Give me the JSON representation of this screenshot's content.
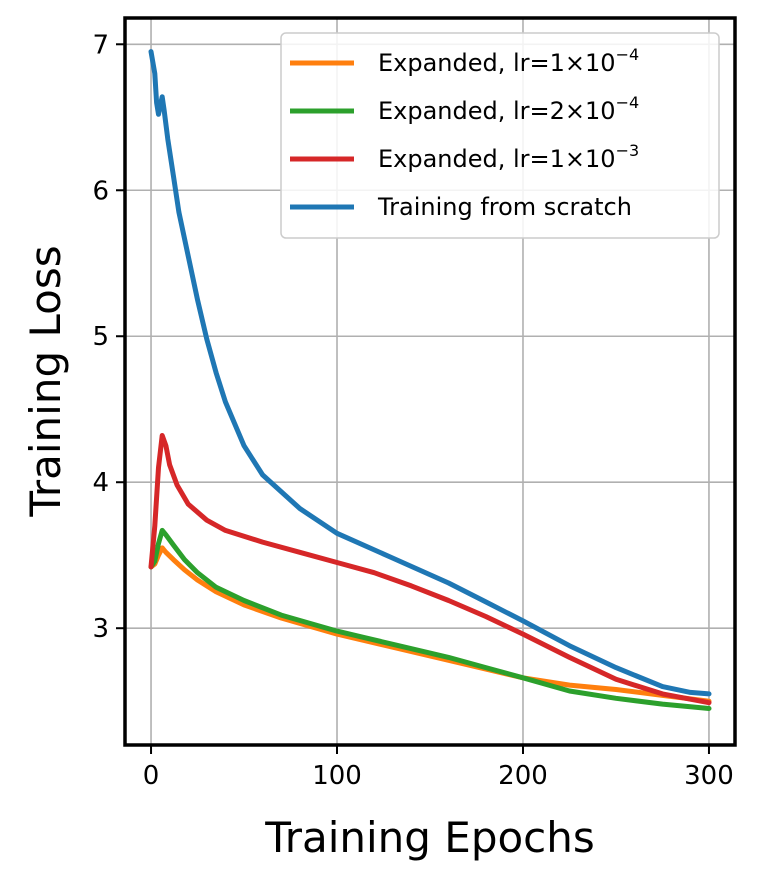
{
  "chart_data": {
    "type": "line",
    "xlabel": "Training Epochs",
    "ylabel": "Training Loss",
    "xlim": [
      -14,
      314
    ],
    "ylim": [
      2.2,
      7.18
    ],
    "xticks": [
      0,
      100,
      200,
      300
    ],
    "yticks": [
      3,
      4,
      5,
      6,
      7
    ],
    "grid": true,
    "legend_position": "top-right",
    "series": [
      {
        "name": "Expanded, lr=1×10⁻⁴",
        "legend": {
          "base": "Expanded, lr=1×10",
          "exp": "−4"
        },
        "color": "#ff7f0e",
        "points": [
          [
            0,
            3.42
          ],
          [
            2,
            3.44
          ],
          [
            4,
            3.5
          ],
          [
            6,
            3.55
          ],
          [
            8,
            3.52
          ],
          [
            12,
            3.47
          ],
          [
            18,
            3.4
          ],
          [
            25,
            3.33
          ],
          [
            35,
            3.25
          ],
          [
            50,
            3.16
          ],
          [
            70,
            3.07
          ],
          [
            100,
            2.96
          ],
          [
            130,
            2.87
          ],
          [
            160,
            2.78
          ],
          [
            180,
            2.72
          ],
          [
            200,
            2.66
          ],
          [
            225,
            2.61
          ],
          [
            250,
            2.58
          ],
          [
            275,
            2.54
          ],
          [
            300,
            2.5
          ]
        ]
      },
      {
        "name": "Expanded, lr=2×10⁻⁴",
        "legend": {
          "base": "Expanded, lr=2×10",
          "exp": "−4"
        },
        "color": "#2ca02c",
        "points": [
          [
            0,
            3.42
          ],
          [
            2,
            3.46
          ],
          [
            4,
            3.58
          ],
          [
            6,
            3.67
          ],
          [
            8,
            3.64
          ],
          [
            12,
            3.57
          ],
          [
            18,
            3.47
          ],
          [
            25,
            3.38
          ],
          [
            35,
            3.28
          ],
          [
            50,
            3.19
          ],
          [
            70,
            3.09
          ],
          [
            100,
            2.98
          ],
          [
            130,
            2.89
          ],
          [
            160,
            2.8
          ],
          [
            180,
            2.73
          ],
          [
            200,
            2.66
          ],
          [
            225,
            2.57
          ],
          [
            250,
            2.52
          ],
          [
            275,
            2.48
          ],
          [
            300,
            2.45
          ]
        ]
      },
      {
        "name": "Expanded, lr=1×10⁻³",
        "legend": {
          "base": "Expanded, lr=1×10",
          "exp": "−3"
        },
        "color": "#d62728",
        "points": [
          [
            0,
            3.42
          ],
          [
            2,
            3.7
          ],
          [
            4,
            4.1
          ],
          [
            6,
            4.32
          ],
          [
            8,
            4.25
          ],
          [
            10,
            4.12
          ],
          [
            14,
            3.98
          ],
          [
            20,
            3.85
          ],
          [
            30,
            3.74
          ],
          [
            40,
            3.67
          ],
          [
            60,
            3.59
          ],
          [
            80,
            3.52
          ],
          [
            100,
            3.45
          ],
          [
            120,
            3.38
          ],
          [
            140,
            3.29
          ],
          [
            160,
            3.19
          ],
          [
            180,
            3.08
          ],
          [
            200,
            2.96
          ],
          [
            225,
            2.8
          ],
          [
            250,
            2.65
          ],
          [
            275,
            2.55
          ],
          [
            300,
            2.49
          ]
        ]
      },
      {
        "name": "Training from scratch",
        "legend": {
          "base": "Training from scratch",
          "exp": ""
        },
        "color": "#1f77b4",
        "points": [
          [
            0,
            6.95
          ],
          [
            2,
            6.8
          ],
          [
            3,
            6.6
          ],
          [
            4,
            6.52
          ],
          [
            5,
            6.58
          ],
          [
            6,
            6.64
          ],
          [
            7,
            6.55
          ],
          [
            9,
            6.35
          ],
          [
            12,
            6.1
          ],
          [
            15,
            5.85
          ],
          [
            20,
            5.55
          ],
          [
            25,
            5.25
          ],
          [
            30,
            4.98
          ],
          [
            35,
            4.75
          ],
          [
            40,
            4.55
          ],
          [
            50,
            4.25
          ],
          [
            60,
            4.05
          ],
          [
            80,
            3.82
          ],
          [
            100,
            3.65
          ],
          [
            130,
            3.48
          ],
          [
            160,
            3.31
          ],
          [
            180,
            3.18
          ],
          [
            200,
            3.05
          ],
          [
            225,
            2.88
          ],
          [
            250,
            2.73
          ],
          [
            275,
            2.6
          ],
          [
            290,
            2.56
          ],
          [
            300,
            2.55
          ]
        ]
      }
    ]
  }
}
